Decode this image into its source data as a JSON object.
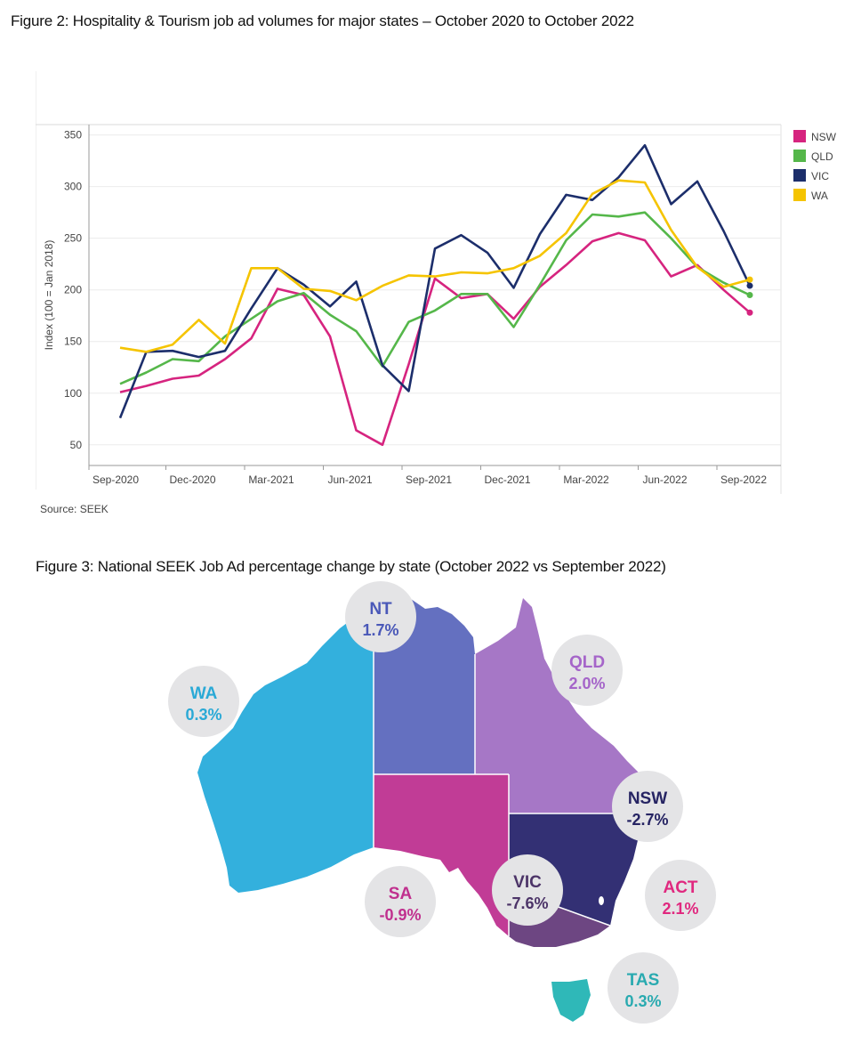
{
  "figure2": {
    "title": "Figure 2: Hospitality & Tourism job ad volumes for major states – October 2020 to October 2022",
    "source": "Source: SEEK"
  },
  "chart_data": {
    "type": "line",
    "title": "Figure 2: Hospitality & Tourism job ad volumes for major states – October 2020 to October 2022",
    "xlabel": "",
    "ylabel": "Index (100 = Jan 2018)",
    "ylim": [
      30,
      360
    ],
    "yticks": [
      50,
      100,
      150,
      200,
      250,
      300,
      350
    ],
    "xtick_labels": [
      "Sep-2020",
      "Dec-2020",
      "Mar-2021",
      "Jun-2021",
      "Sep-2021",
      "Dec-2021",
      "Mar-2022",
      "Jun-2022",
      "Sep-2022"
    ],
    "xtick_positions": [
      0,
      3,
      6,
      9,
      12,
      15,
      18,
      21,
      24
    ],
    "x": [
      "Oct-2020",
      "Nov-2020",
      "Dec-2020",
      "Jan-2021",
      "Feb-2021",
      "Mar-2021",
      "Apr-2021",
      "May-2021",
      "Jun-2021",
      "Jul-2021",
      "Aug-2021",
      "Sep-2021",
      "Oct-2021",
      "Nov-2021",
      "Dec-2021",
      "Jan-2022",
      "Feb-2022",
      "Mar-2022",
      "Apr-2022",
      "May-2022",
      "Jun-2022",
      "Jul-2022",
      "Aug-2022",
      "Sep-2022",
      "Oct-2022"
    ],
    "legend_position": "right",
    "grid": true,
    "series": [
      {
        "name": "NSW",
        "color": "#d6247f",
        "values": [
          101,
          107,
          114,
          117,
          133,
          153,
          201,
          195,
          155,
          64,
          50,
          128,
          211,
          192,
          196,
          172,
          203,
          224,
          247,
          255,
          248,
          213,
          224,
          200,
          178
        ]
      },
      {
        "name": "QLD",
        "color": "#55b74a",
        "values": [
          109,
          120,
          133,
          131,
          155,
          172,
          189,
          197,
          176,
          160,
          126,
          169,
          180,
          196,
          196,
          164,
          205,
          248,
          273,
          271,
          275,
          250,
          222,
          207,
          195
        ]
      },
      {
        "name": "VIC",
        "color": "#1c2e6b",
        "values": [
          76,
          140,
          141,
          135,
          141,
          182,
          221,
          205,
          184,
          208,
          127,
          102,
          240,
          253,
          236,
          202,
          254,
          292,
          287,
          309,
          340,
          283,
          305,
          257,
          204
        ]
      },
      {
        "name": "WA",
        "color": "#f5c400",
        "values": [
          144,
          140,
          147,
          171,
          148,
          221,
          221,
          201,
          199,
          190,
          204,
          214,
          213,
          217,
          216,
          221,
          233,
          255,
          293,
          306,
          304,
          258,
          222,
          203,
          210
        ]
      }
    ]
  },
  "figure3": {
    "title": "Figure 3: National SEEK Job Ad percentage change by state (October 2022 vs September 2022)",
    "states": {
      "wa": {
        "name": "WA",
        "value": "0.3%",
        "color": "#33b0dd",
        "text_color": "#2aa9d6"
      },
      "nt": {
        "name": "NT",
        "value": "1.7%",
        "color": "#6470c0",
        "text_color": "#4a58b8"
      },
      "qld": {
        "name": "QLD",
        "value": "2.0%",
        "color": "#a677c6",
        "text_color": "#a565c9"
      },
      "sa": {
        "name": "SA",
        "value": "-0.9%",
        "color": "#c13c96",
        "text_color": "#c0308e"
      },
      "nsw": {
        "name": "NSW",
        "value": "-2.7%",
        "color": "#333074",
        "text_color": "#262463"
      },
      "vic": {
        "name": "VIC",
        "value": "-7.6%",
        "color": "#6d4682",
        "text_color": "#4c3468"
      },
      "act": {
        "name": "ACT",
        "value": "2.1%",
        "color": "#ffffff",
        "text_color": "#e0287f"
      },
      "tas": {
        "name": "TAS",
        "value": "0.3%",
        "color": "#2fb8b8",
        "text_color": "#29aab0"
      }
    }
  }
}
